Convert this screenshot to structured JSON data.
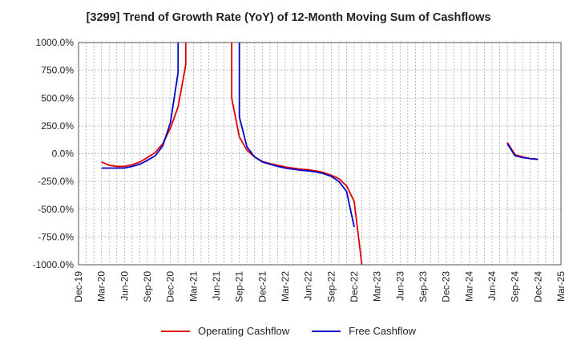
{
  "chart_data": {
    "type": "line",
    "title": "[3299]  Trend of Growth Rate (YoY) of 12-Month Moving Sum of Cashflows",
    "xlabel": "",
    "ylabel": "",
    "ylim": [
      -1000,
      1000
    ],
    "grid": true,
    "legend_position": "bottom",
    "y_ticks": [
      "1000.0%",
      "750.0%",
      "500.0%",
      "250.0%",
      "0.0%",
      "-250.0%",
      "-500.0%",
      "-750.0%",
      "-1000.0%"
    ],
    "x_ticks": [
      "Dec-19",
      "Mar-20",
      "Jun-20",
      "Sep-20",
      "Dec-20",
      "Mar-21",
      "Jun-21",
      "Sep-21",
      "Dec-21",
      "Mar-22",
      "Jun-22",
      "Sep-22",
      "Dec-22",
      "Mar-23",
      "Jun-23",
      "Sep-23",
      "Dec-23",
      "Mar-24",
      "Jun-24",
      "Sep-24",
      "Dec-24",
      "Mar-25"
    ],
    "series": [
      {
        "name": "Operating Cashflow",
        "color": "#e00000",
        "segments": [
          [
            {
              "x": "2020-03",
              "y": -75
            },
            {
              "x": "2020-04",
              "y": -105
            },
            {
              "x": "2020-05",
              "y": -115
            },
            {
              "x": "2020-06",
              "y": -115
            },
            {
              "x": "2020-07",
              "y": -100
            },
            {
              "x": "2020-08",
              "y": -75
            },
            {
              "x": "2020-09",
              "y": -35
            },
            {
              "x": "2020-10",
              "y": 10
            },
            {
              "x": "2020-11",
              "y": 90
            },
            {
              "x": "2020-12",
              "y": 230
            },
            {
              "x": "2021-01",
              "y": 420
            },
            {
              "x": "2021-02",
              "y": 800
            },
            {
              "x": "2021-02",
              "y": 1000
            }
          ],
          [
            {
              "x": "2021-08",
              "y": 1000
            },
            {
              "x": "2021-08",
              "y": 500
            },
            {
              "x": "2021-09",
              "y": 150
            },
            {
              "x": "2021-10",
              "y": 30
            },
            {
              "x": "2021-11",
              "y": -30
            },
            {
              "x": "2021-12",
              "y": -70
            },
            {
              "x": "2022-01",
              "y": -90
            },
            {
              "x": "2022-02",
              "y": -105
            },
            {
              "x": "2022-03",
              "y": -120
            },
            {
              "x": "2022-04",
              "y": -130
            },
            {
              "x": "2022-05",
              "y": -140
            },
            {
              "x": "2022-06",
              "y": -145
            },
            {
              "x": "2022-07",
              "y": -155
            },
            {
              "x": "2022-08",
              "y": -170
            },
            {
              "x": "2022-09",
              "y": -195
            },
            {
              "x": "2022-10",
              "y": -225
            },
            {
              "x": "2022-11",
              "y": -290
            },
            {
              "x": "2022-12",
              "y": -430
            },
            {
              "x": "2023-01",
              "y": -1000
            }
          ],
          [
            {
              "x": "2024-08",
              "y": 100
            },
            {
              "x": "2024-09",
              "y": -10
            },
            {
              "x": "2024-10",
              "y": -30
            },
            {
              "x": "2024-11",
              "y": -45
            },
            {
              "x": "2024-12",
              "y": -50
            }
          ]
        ]
      },
      {
        "name": "Free Cashflow",
        "color": "#0000cc",
        "segments": [
          [
            {
              "x": "2020-03",
              "y": -130
            },
            {
              "x": "2020-04",
              "y": -130
            },
            {
              "x": "2020-05",
              "y": -130
            },
            {
              "x": "2020-06",
              "y": -130
            },
            {
              "x": "2020-07",
              "y": -115
            },
            {
              "x": "2020-08",
              "y": -95
            },
            {
              "x": "2020-09",
              "y": -60
            },
            {
              "x": "2020-10",
              "y": -20
            },
            {
              "x": "2020-11",
              "y": 70
            },
            {
              "x": "2020-12",
              "y": 280
            },
            {
              "x": "2021-01",
              "y": 730
            },
            {
              "x": "2021-01",
              "y": 1000
            }
          ],
          [
            {
              "x": "2021-09",
              "y": 1000
            },
            {
              "x": "2021-09",
              "y": 330
            },
            {
              "x": "2021-10",
              "y": 60
            },
            {
              "x": "2021-11",
              "y": -30
            },
            {
              "x": "2021-12",
              "y": -75
            },
            {
              "x": "2022-01",
              "y": -95
            },
            {
              "x": "2022-02",
              "y": -115
            },
            {
              "x": "2022-03",
              "y": -130
            },
            {
              "x": "2022-04",
              "y": -140
            },
            {
              "x": "2022-05",
              "y": -150
            },
            {
              "x": "2022-06",
              "y": -155
            },
            {
              "x": "2022-07",
              "y": -165
            },
            {
              "x": "2022-08",
              "y": -180
            },
            {
              "x": "2022-09",
              "y": -205
            },
            {
              "x": "2022-10",
              "y": -250
            },
            {
              "x": "2022-11",
              "y": -340
            },
            {
              "x": "2022-12",
              "y": -660
            }
          ],
          [
            {
              "x": "2024-08",
              "y": 90
            },
            {
              "x": "2024-09",
              "y": -20
            },
            {
              "x": "2024-10",
              "y": -35
            },
            {
              "x": "2024-11",
              "y": -45
            },
            {
              "x": "2024-12",
              "y": -52
            }
          ]
        ]
      }
    ]
  }
}
